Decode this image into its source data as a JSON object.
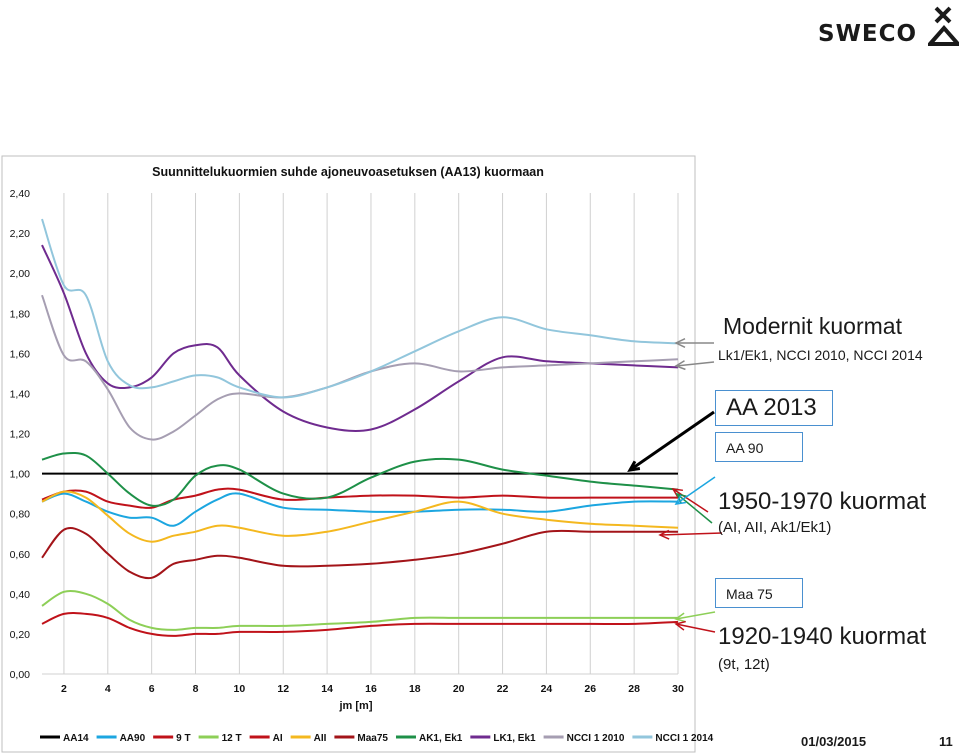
{
  "brand": {
    "name": "SWECO"
  },
  "chart_data": {
    "type": "line",
    "title": "Suunnittelukuormien suhde ajoneuvoasetuksen (AA13) kuormaan",
    "xlabel": "jm [m]",
    "ylabel": "",
    "xlim": [
      1,
      30
    ],
    "ylim": [
      0,
      2.4
    ],
    "xticks": [
      2,
      4,
      6,
      8,
      10,
      12,
      14,
      16,
      18,
      20,
      22,
      24,
      26,
      28,
      30
    ],
    "yticks": [
      "0,00",
      "0,20",
      "0,40",
      "0,60",
      "0,80",
      "1,00",
      "1,20",
      "1,40",
      "1,60",
      "1,80",
      "2,00",
      "2,20",
      "2,40"
    ],
    "grid": "vertical",
    "legend_position": "bottom",
    "series": [
      {
        "name": "AA14",
        "color": "#000000",
        "x": [
          1,
          30
        ],
        "y": [
          1.0,
          1.0
        ]
      },
      {
        "name": "AA90",
        "color": "#1ca6e0",
        "x": [
          1,
          2,
          3,
          4,
          5,
          6,
          7,
          8,
          9,
          10,
          12,
          14,
          16,
          18,
          20,
          22,
          24,
          26,
          28,
          30
        ],
        "y": [
          0.86,
          0.9,
          0.86,
          0.81,
          0.78,
          0.78,
          0.74,
          0.81,
          0.87,
          0.9,
          0.83,
          0.82,
          0.81,
          0.81,
          0.82,
          0.82,
          0.81,
          0.84,
          0.86,
          0.86
        ]
      },
      {
        "name": "9 T",
        "color": "#c0121a",
        "x": [
          1,
          2,
          3,
          4,
          5,
          6,
          7,
          8,
          9,
          10,
          12,
          14,
          16,
          18,
          20,
          22,
          24,
          26,
          28,
          30
        ],
        "y": [
          0.25,
          0.3,
          0.3,
          0.28,
          0.23,
          0.2,
          0.19,
          0.2,
          0.2,
          0.21,
          0.21,
          0.22,
          0.24,
          0.25,
          0.25,
          0.25,
          0.25,
          0.25,
          0.25,
          0.26
        ]
      },
      {
        "name": "12 T",
        "color": "#8dcf57",
        "x": [
          1,
          2,
          3,
          4,
          5,
          6,
          7,
          8,
          9,
          10,
          12,
          14,
          16,
          18,
          20,
          22,
          24,
          26,
          28,
          30
        ],
        "y": [
          0.34,
          0.41,
          0.4,
          0.35,
          0.27,
          0.23,
          0.22,
          0.23,
          0.23,
          0.24,
          0.24,
          0.25,
          0.26,
          0.28,
          0.28,
          0.28,
          0.28,
          0.28,
          0.28,
          0.28
        ]
      },
      {
        "name": "AI",
        "color": "#c0121a",
        "x": [
          1,
          2,
          3,
          4,
          5,
          6,
          7,
          8,
          9,
          10,
          12,
          14,
          16,
          18,
          20,
          22,
          24,
          26,
          28,
          30
        ],
        "y": [
          0.87,
          0.91,
          0.91,
          0.86,
          0.84,
          0.83,
          0.87,
          0.89,
          0.92,
          0.92,
          0.87,
          0.88,
          0.89,
          0.89,
          0.88,
          0.89,
          0.88,
          0.88,
          0.88,
          0.88
        ]
      },
      {
        "name": "AII",
        "color": "#f4b81f",
        "x": [
          1,
          2,
          3,
          4,
          5,
          6,
          7,
          8,
          9,
          10,
          12,
          14,
          16,
          18,
          20,
          22,
          24,
          26,
          28,
          30
        ],
        "y": [
          0.86,
          0.91,
          0.88,
          0.79,
          0.7,
          0.66,
          0.69,
          0.71,
          0.74,
          0.73,
          0.69,
          0.71,
          0.76,
          0.81,
          0.86,
          0.8,
          0.77,
          0.75,
          0.74,
          0.73
        ]
      },
      {
        "name": "Maa75",
        "color": "#a31419",
        "x": [
          1,
          2,
          3,
          4,
          5,
          6,
          7,
          8,
          9,
          10,
          12,
          14,
          16,
          18,
          20,
          22,
          24,
          26,
          28,
          30
        ],
        "y": [
          0.58,
          0.72,
          0.7,
          0.6,
          0.51,
          0.48,
          0.55,
          0.57,
          0.59,
          0.58,
          0.54,
          0.54,
          0.55,
          0.57,
          0.6,
          0.65,
          0.71,
          0.71,
          0.71,
          0.71
        ]
      },
      {
        "name": "AK1, Ek1",
        "color": "#1e9048",
        "x": [
          1,
          2,
          3,
          4,
          5,
          6,
          7,
          8,
          9,
          10,
          12,
          14,
          16,
          18,
          20,
          22,
          24,
          26,
          28,
          30
        ],
        "y": [
          1.07,
          1.1,
          1.09,
          1.0,
          0.9,
          0.84,
          0.87,
          0.99,
          1.04,
          1.02,
          0.9,
          0.88,
          0.98,
          1.06,
          1.07,
          1.02,
          0.99,
          0.96,
          0.94,
          0.92
        ]
      },
      {
        "name": "LK1, Ek1",
        "color": "#6f2b8f",
        "x": [
          1,
          2,
          3,
          4,
          5,
          6,
          7,
          8,
          9,
          10,
          12,
          14,
          16,
          18,
          20,
          22,
          24,
          26,
          28,
          30
        ],
        "y": [
          2.14,
          1.9,
          1.6,
          1.45,
          1.43,
          1.48,
          1.6,
          1.64,
          1.63,
          1.49,
          1.31,
          1.23,
          1.22,
          1.32,
          1.46,
          1.58,
          1.56,
          1.55,
          1.54,
          1.53
        ]
      },
      {
        "name": "NCCI 1 2010",
        "color": "#a69eb2",
        "x": [
          1,
          2,
          3,
          4,
          5,
          6,
          7,
          8,
          9,
          10,
          12,
          14,
          16,
          18,
          20,
          22,
          24,
          26,
          28,
          30
        ],
        "y": [
          1.89,
          1.59,
          1.56,
          1.42,
          1.23,
          1.17,
          1.21,
          1.29,
          1.37,
          1.4,
          1.38,
          1.43,
          1.51,
          1.55,
          1.51,
          1.53,
          1.54,
          1.55,
          1.56,
          1.57
        ]
      },
      {
        "name": "NCCI 1 2014",
        "color": "#92c6dc",
        "x": [
          1,
          2,
          3,
          4,
          5,
          6,
          7,
          8,
          9,
          10,
          12,
          14,
          16,
          18,
          20,
          22,
          24,
          26,
          28,
          30
        ],
        "y": [
          2.27,
          1.94,
          1.89,
          1.56,
          1.44,
          1.43,
          1.46,
          1.49,
          1.48,
          1.43,
          1.38,
          1.43,
          1.51,
          1.61,
          1.71,
          1.78,
          1.72,
          1.69,
          1.66,
          1.65
        ]
      }
    ]
  },
  "annotations": {
    "modern_title": "Modernit  kuormat",
    "modern_sub": "Lk1/Ek1, NCCI 2010, NCCI 2014",
    "aa2013": "AA 2013",
    "aa90": "AA 90",
    "old_1950_title": "1950-1970 kuormat",
    "old_1950_sub": "(AI, AII, Ak1/Ek1)",
    "maa75": "Maa 75",
    "old_1920_title": "1920-1940 kuormat",
    "old_1920_sub": "(9t, 12t)"
  },
  "footer": {
    "date": "01/03/2015",
    "page": "11"
  }
}
